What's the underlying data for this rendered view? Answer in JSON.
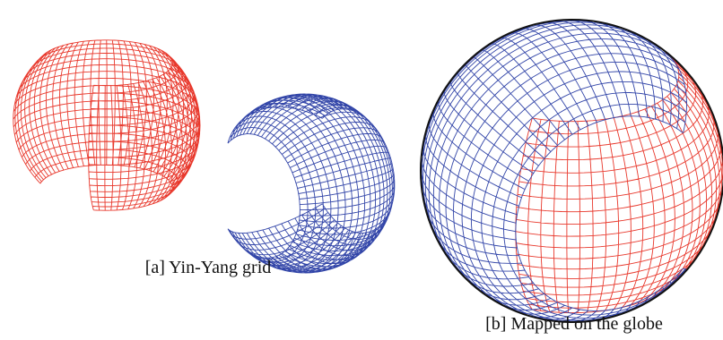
{
  "panels": [
    {
      "caption": "[a] Yin-Yang grid"
    },
    {
      "caption": "[b] Mapped on the globe"
    }
  ]
}
